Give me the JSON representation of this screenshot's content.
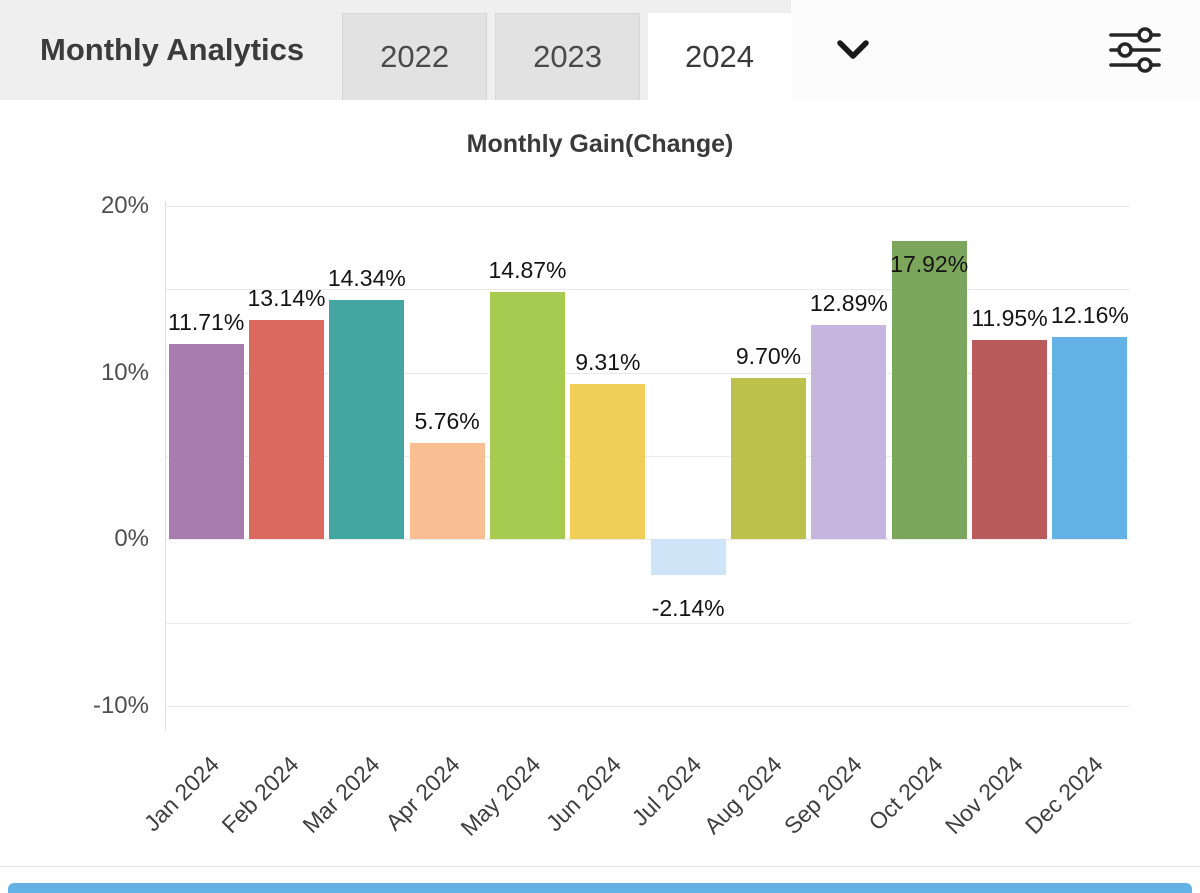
{
  "header": {
    "title": "Monthly Analytics",
    "tabs": [
      {
        "label": "2022",
        "active": false
      },
      {
        "label": "2023",
        "active": false
      },
      {
        "label": "2024",
        "active": true
      }
    ],
    "icons": {
      "dropdown": "chevron-down-icon",
      "settings": "sliders-icon"
    }
  },
  "chart_data": {
    "type": "bar",
    "title": "Monthly Gain(Change)",
    "categories": [
      "Jan 2024",
      "Feb 2024",
      "Mar 2024",
      "Apr 2024",
      "May 2024",
      "Jun 2024",
      "Jul 2024",
      "Aug 2024",
      "Sep 2024",
      "Oct 2024",
      "Nov 2024",
      "Dec 2024"
    ],
    "values": [
      11.71,
      13.14,
      14.34,
      5.76,
      14.87,
      9.31,
      -2.14,
      9.7,
      12.89,
      17.92,
      11.95,
      12.16
    ],
    "value_labels": [
      "11.71%",
      "13.14%",
      "14.34%",
      "5.76%",
      "14.87%",
      "9.31%",
      "-2.14%",
      "9.70%",
      "12.89%",
      "17.92%",
      "11.95%",
      "12.16%"
    ],
    "bar_colors": [
      "#a97cb0",
      "#da6a5f",
      "#44a6a0",
      "#f9be92",
      "#a6cb50",
      "#f0ce58",
      "#cfe4f6",
      "#bcc04c",
      "#c6b6df",
      "#7ca65b",
      "#b95b5b",
      "#63b1e5"
    ],
    "xlabel": "",
    "ylabel": "",
    "y_ticks": [
      20,
      10,
      0,
      -10
    ],
    "y_tick_labels": [
      "20%",
      "10%",
      "0%",
      "-10%"
    ],
    "y_gridlines": [
      20,
      15,
      10,
      5,
      0,
      -5,
      -10
    ],
    "ylim": [
      -11.5,
      20.3
    ],
    "grid": true,
    "legend": false
  },
  "footer": {
    "partial_bar_color": "#63b1e5"
  }
}
